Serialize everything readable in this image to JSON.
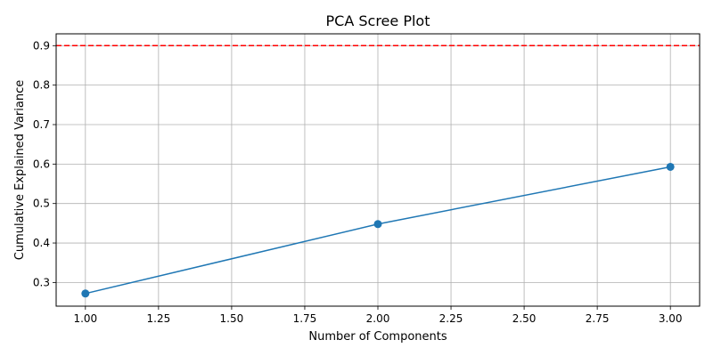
{
  "chart_data": {
    "type": "line",
    "title": "PCA Scree Plot",
    "xlabel": "Number of Components",
    "ylabel": "Cumulative Explained Variance",
    "xlim": [
      0.9,
      3.1
    ],
    "ylim": [
      0.24,
      0.93
    ],
    "xticks": [
      "1.00",
      "1.25",
      "1.50",
      "1.75",
      "2.00",
      "2.25",
      "2.50",
      "2.75",
      "3.00"
    ],
    "yticks": [
      "0.3",
      "0.4",
      "0.5",
      "0.6",
      "0.7",
      "0.8",
      "0.9"
    ],
    "grid": true,
    "series": [
      {
        "x": [
          1,
          2,
          3
        ],
        "y": [
          0.272,
          0.448,
          0.593
        ],
        "color": "#1f77b4",
        "marker": "circle"
      }
    ],
    "reference_lines": [
      {
        "orientation": "horizontal",
        "y": 0.9,
        "color": "#ff0000",
        "style": "dashed"
      }
    ]
  }
}
